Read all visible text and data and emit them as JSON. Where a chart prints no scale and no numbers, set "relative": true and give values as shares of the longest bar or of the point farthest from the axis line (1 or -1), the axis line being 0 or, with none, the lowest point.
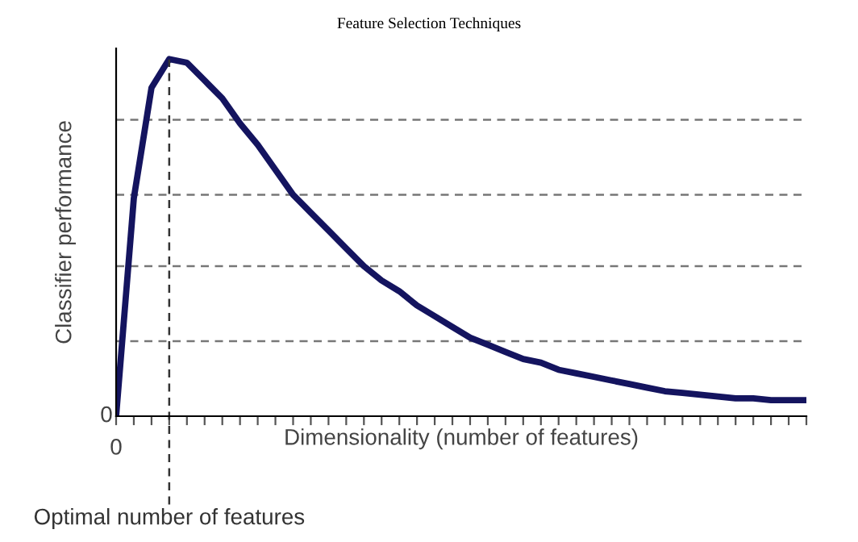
{
  "chart_data": {
    "type": "line",
    "title": "Feature Selection Techniques",
    "xlabel": "Dimensionality (number of features)",
    "ylabel": "Classifier performance",
    "relative": true,
    "categories": [
      null,
      null,
      null,
      null,
      null,
      null,
      null,
      null,
      null,
      null,
      null,
      null,
      null,
      null,
      null,
      null,
      null,
      null,
      null,
      null,
      null,
      null,
      null,
      null,
      null,
      null,
      null,
      null,
      null,
      null,
      null,
      null,
      null,
      null,
      null,
      null,
      null,
      null,
      null,
      null
    ],
    "series": [
      {
        "color": "#14145f",
        "values": [
          0,
          0.61,
          0.92,
          1.0,
          0.99,
          0.94,
          0.89,
          0.82,
          0.76,
          0.69,
          0.62,
          0.57,
          0.52,
          0.47,
          0.42,
          0.38,
          0.35,
          0.31,
          0.28,
          0.25,
          0.22,
          0.2,
          0.18,
          0.16,
          0.15,
          0.13,
          0.12,
          0.11,
          0.1,
          0.09,
          0.08,
          0.07,
          0.065,
          0.06,
          0.055,
          0.05,
          0.05,
          0.045,
          0.045,
          0.045
        ]
      }
    ],
    "ref_lines": [
      {
        "axis": "y",
        "value": 0.83,
        "color": "#777777",
        "line_style": "dashed"
      },
      {
        "axis": "y",
        "value": 0.62,
        "color": "#777777",
        "line_style": "dashed"
      },
      {
        "axis": "y",
        "value": 0.42,
        "color": "#777777",
        "line_style": "dashed"
      },
      {
        "axis": "y",
        "value": 0.21,
        "color": "#777777",
        "line_style": "dashed"
      }
    ],
    "annotations": [
      "0",
      "0",
      "Optimal number of features"
    ],
    "marker": "none",
    "line_style": "solid",
    "grid": false,
    "legend": false
  }
}
